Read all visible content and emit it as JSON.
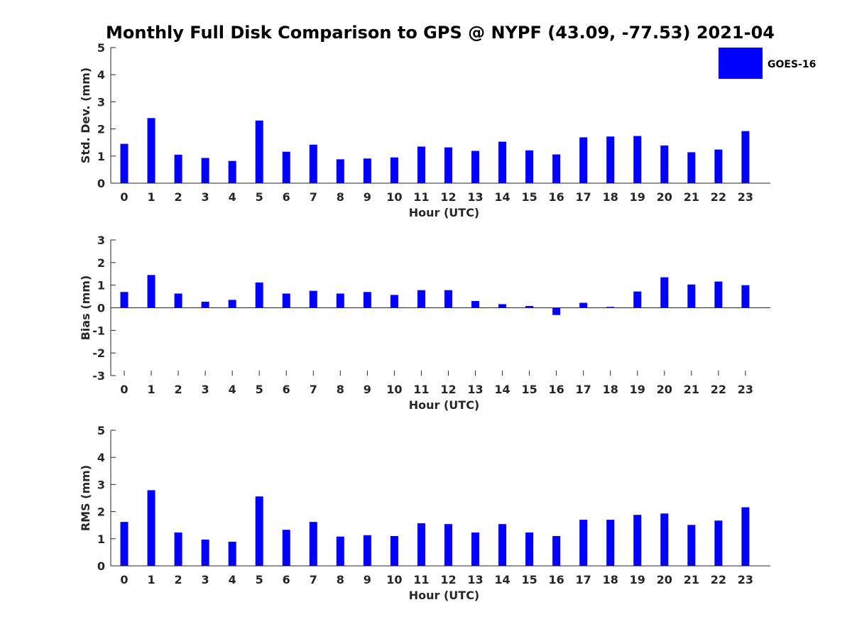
{
  "title": "Monthly Full Disk Comparison to GPS @ NYPF (43.09, -77.53) 2021-04",
  "legend": {
    "label": "GOES-16",
    "color": "#0000ff",
    "placement": "top-right"
  },
  "colors": {
    "bar": "#0000ff",
    "axis": "#262626"
  },
  "chart_data": [
    {
      "type": "bar",
      "xlabel": "Hour (UTC)",
      "ylabel": "Std. Dev. (mm)",
      "ylim": [
        0,
        5
      ],
      "yticks": [
        0,
        1,
        2,
        3,
        4,
        5
      ],
      "categories": [
        "0",
        "1",
        "2",
        "3",
        "4",
        "5",
        "6",
        "7",
        "8",
        "9",
        "10",
        "11",
        "12",
        "13",
        "14",
        "15",
        "16",
        "17",
        "18",
        "19",
        "20",
        "21",
        "22",
        "23"
      ],
      "series": [
        {
          "name": "GOES-16",
          "values": [
            1.45,
            2.4,
            1.05,
            0.93,
            0.82,
            2.31,
            1.16,
            1.42,
            0.88,
            0.91,
            0.95,
            1.35,
            1.32,
            1.19,
            1.53,
            1.21,
            1.06,
            1.69,
            1.72,
            1.74,
            1.39,
            1.14,
            1.24,
            1.92
          ]
        }
      ],
      "grid": false
    },
    {
      "type": "bar",
      "xlabel": "Hour (UTC)",
      "ylabel": "Bias (mm)",
      "ylim": [
        -3,
        3
      ],
      "yticks": [
        -3,
        -2,
        -1,
        0,
        1,
        2,
        3
      ],
      "categories": [
        "0",
        "1",
        "2",
        "3",
        "4",
        "5",
        "6",
        "7",
        "8",
        "9",
        "10",
        "11",
        "12",
        "13",
        "14",
        "15",
        "16",
        "17",
        "18",
        "19",
        "20",
        "21",
        "22",
        "23"
      ],
      "series": [
        {
          "name": "GOES-16",
          "values": [
            0.7,
            1.45,
            0.63,
            0.27,
            0.35,
            1.12,
            0.63,
            0.75,
            0.63,
            0.7,
            0.57,
            0.78,
            0.78,
            0.3,
            0.16,
            0.08,
            -0.32,
            0.22,
            0.04,
            0.72,
            1.35,
            1.03,
            1.16,
            1.0
          ]
        }
      ],
      "grid": false
    },
    {
      "type": "bar",
      "xlabel": "Hour (UTC)",
      "ylabel": "RMS (mm)",
      "ylim": [
        0,
        5
      ],
      "yticks": [
        0,
        1,
        2,
        3,
        4,
        5
      ],
      "categories": [
        "0",
        "1",
        "2",
        "3",
        "4",
        "5",
        "6",
        "7",
        "8",
        "9",
        "10",
        "11",
        "12",
        "13",
        "14",
        "15",
        "16",
        "17",
        "18",
        "19",
        "20",
        "21",
        "22",
        "23"
      ],
      "series": [
        {
          "name": "GOES-16",
          "values": [
            1.62,
            2.79,
            1.23,
            0.97,
            0.89,
            2.56,
            1.33,
            1.62,
            1.08,
            1.13,
            1.1,
            1.57,
            1.54,
            1.23,
            1.54,
            1.23,
            1.1,
            1.7,
            1.7,
            1.88,
            1.93,
            1.51,
            1.67,
            2.16
          ]
        }
      ],
      "grid": false
    }
  ]
}
